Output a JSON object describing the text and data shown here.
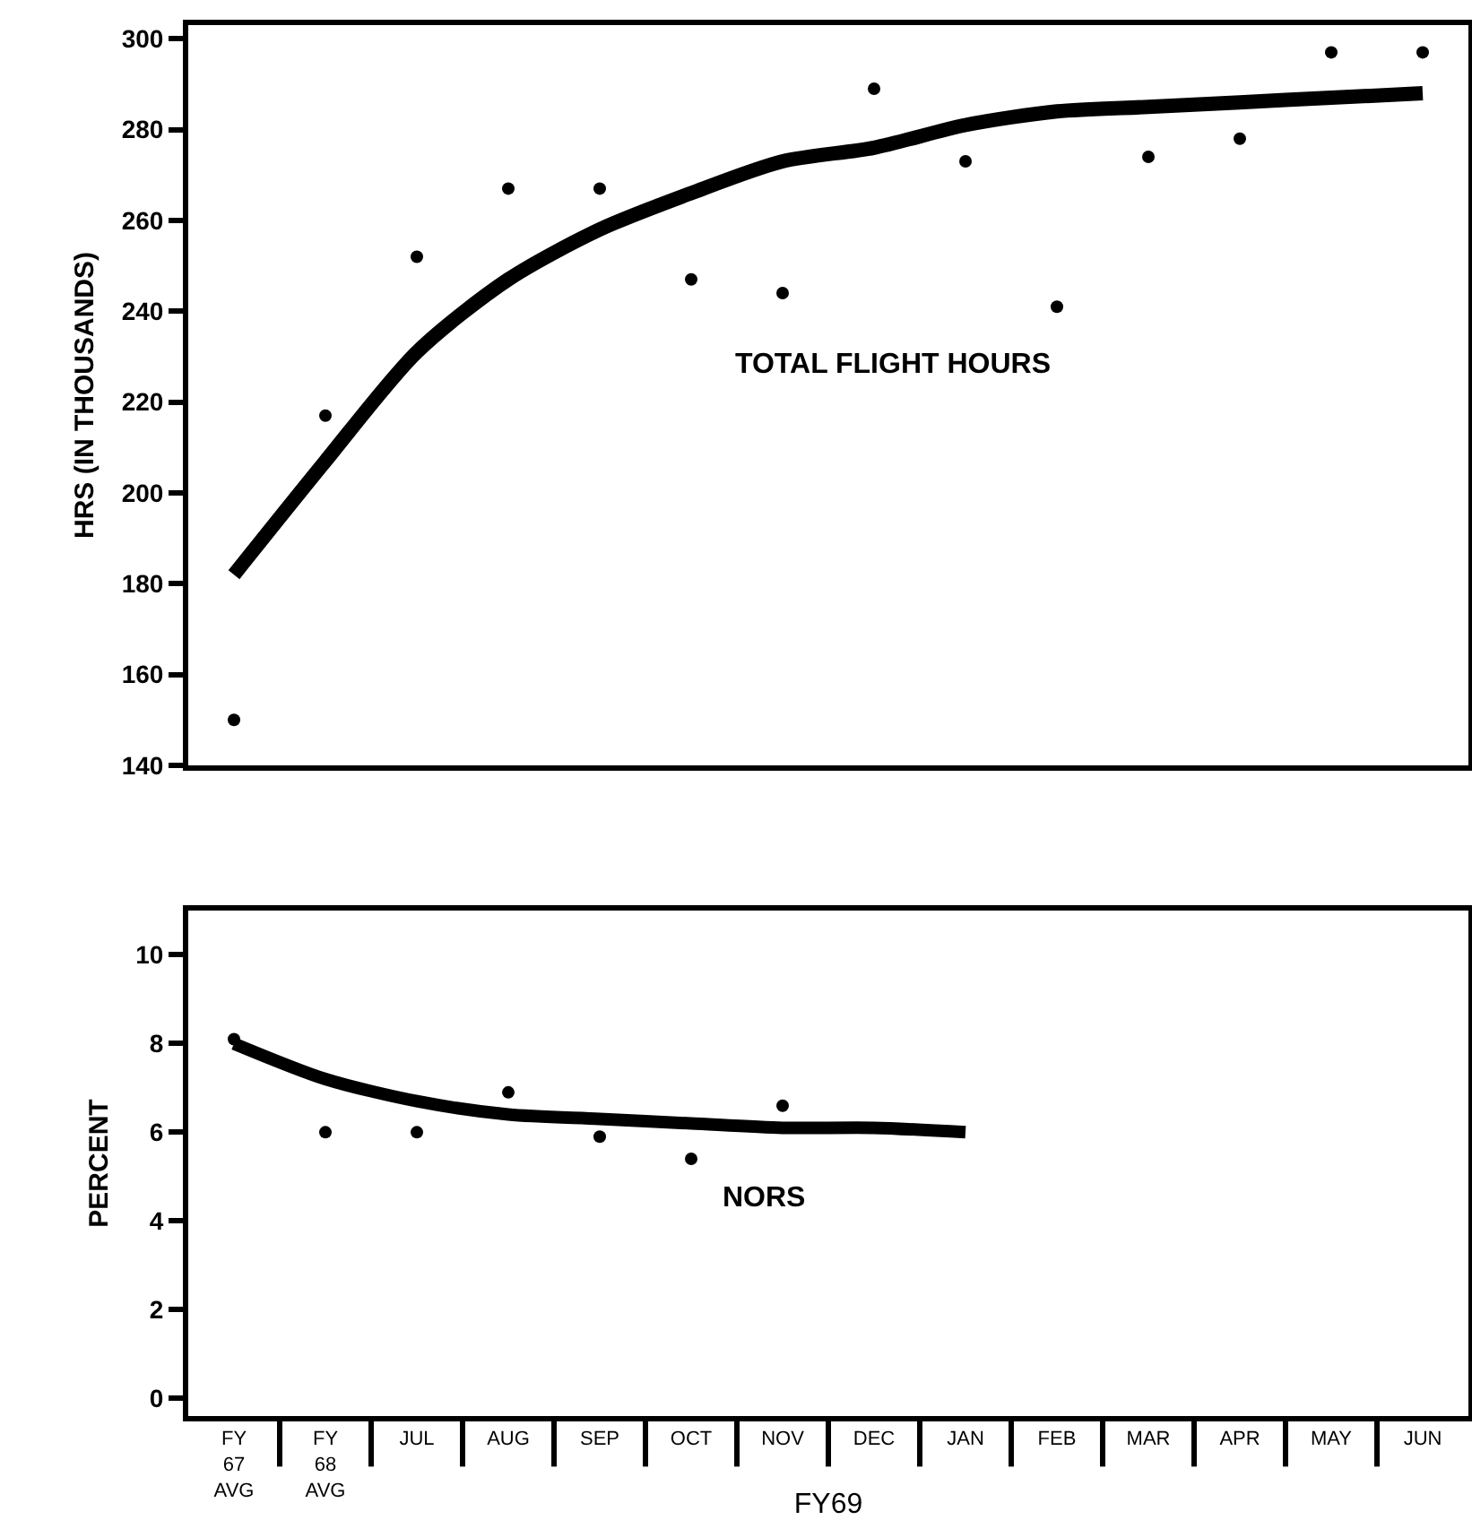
{
  "chart_data": [
    {
      "type": "scatter",
      "ylabel": "HRS (IN THOUSANDS)",
      "annotations": [
        "TOTAL FLIGHT HOURS"
      ],
      "categories": [
        null,
        null,
        null,
        null,
        null,
        null,
        null,
        null,
        null,
        null,
        null,
        null,
        null,
        null
      ],
      "series": [
        {
          "color": "#000000",
          "marker": "circle",
          "values": [
            150,
            217,
            252,
            267,
            267,
            247,
            244,
            289,
            273,
            241,
            274,
            278,
            297,
            297
          ]
        },
        {
          "type": "line",
          "marker": "none",
          "color": "#000000",
          "values": [
            182,
            207,
            231,
            247,
            258,
            266,
            273,
            276,
            281,
            284,
            285,
            286,
            287,
            288
          ]
        }
      ],
      "ylim": [
        140,
        303
      ],
      "yticks": [
        140,
        160,
        180,
        200,
        220,
        240,
        260,
        280,
        300
      ],
      "grid": false,
      "tick_labels": "y"
    },
    {
      "type": "scatter",
      "ylabel": "PERCENT",
      "xlabel": "FY69",
      "annotations": [
        "NORS"
      ],
      "categories": [
        "FY\n67\nAVG",
        "FY\n68\nAVG",
        "JUL",
        "AUG",
        "SEP",
        "OCT",
        "NOV",
        "DEC",
        "JAN",
        "FEB",
        "MAR",
        "APR",
        "MAY",
        "JUN"
      ],
      "series": [
        {
          "color": "#000000",
          "marker": "circle",
          "values": [
            8.1,
            6.0,
            6.0,
            6.9,
            5.9,
            5.4,
            6.6,
            null,
            null,
            null,
            null,
            null,
            null,
            null
          ]
        },
        {
          "type": "line",
          "marker": "none",
          "color": "#000000",
          "values": [
            8.0,
            7.2,
            6.7,
            6.4,
            6.3,
            6.2,
            6.1,
            6.1,
            6.0,
            null,
            null,
            null,
            null,
            null
          ]
        }
      ],
      "ylim": [
        -0.4,
        11
      ],
      "yticks": [
        0,
        2,
        4,
        6,
        8,
        10
      ],
      "grid": false
    }
  ]
}
